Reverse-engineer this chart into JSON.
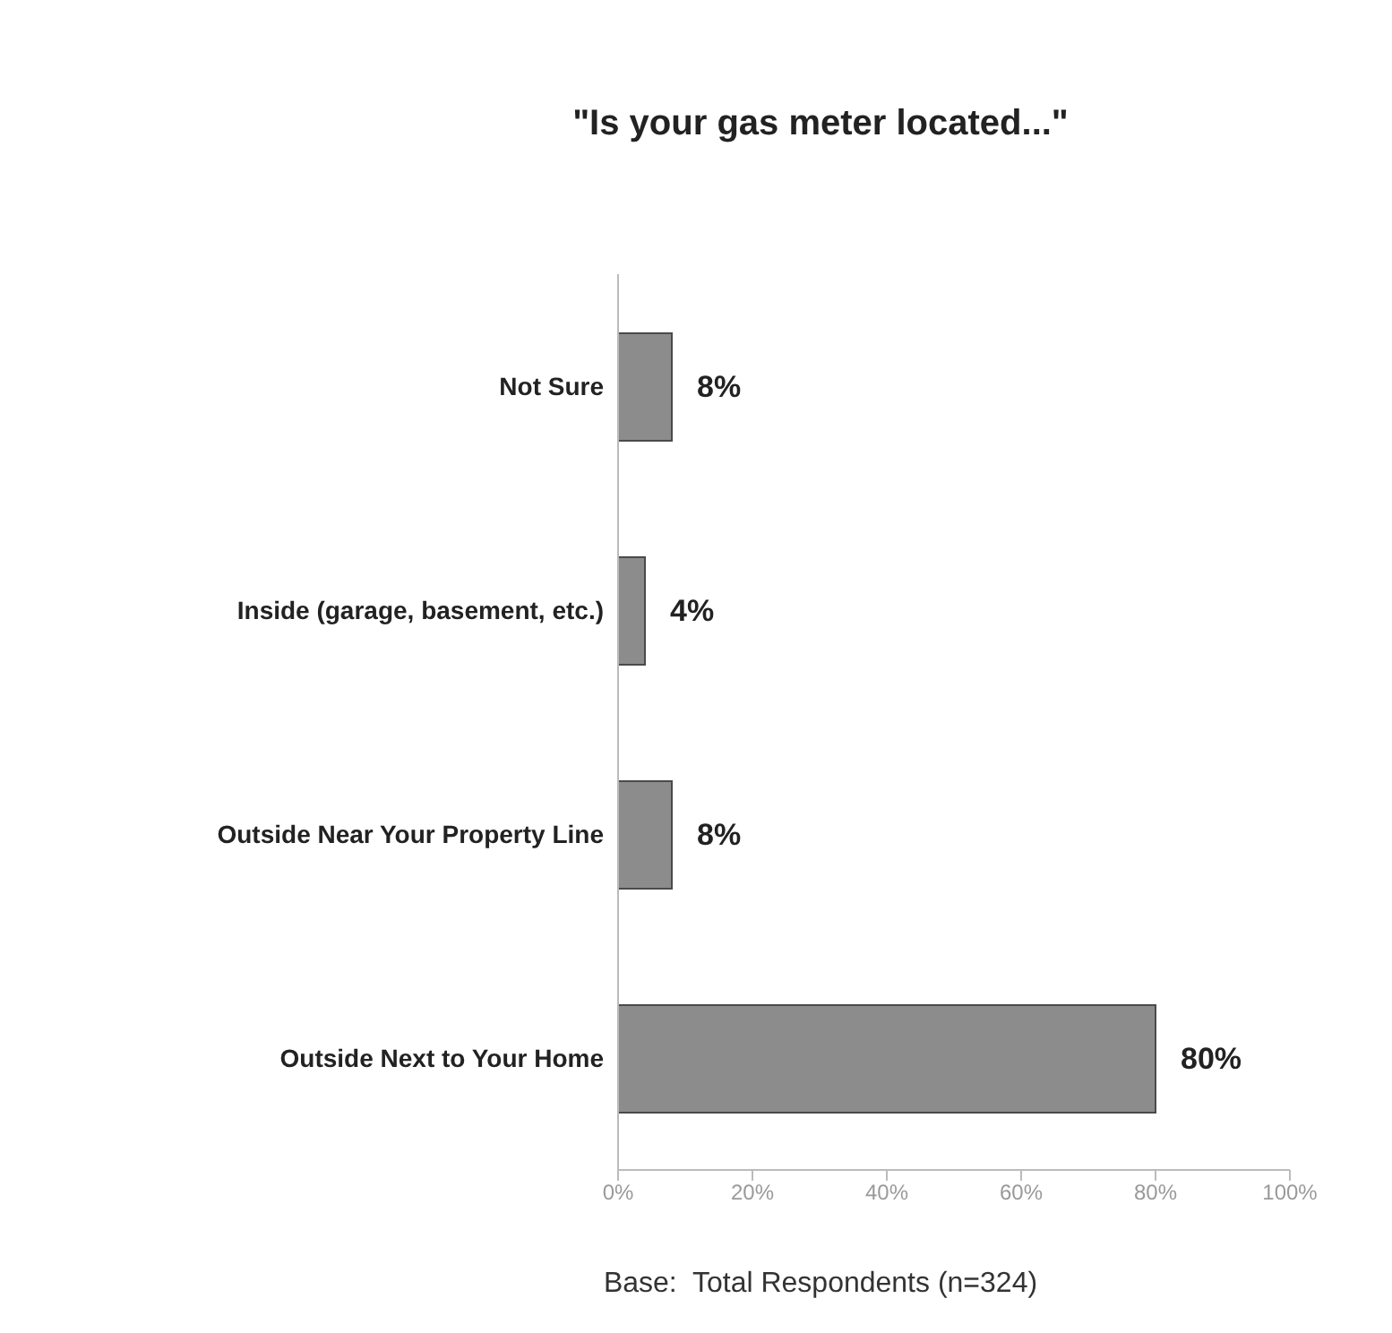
{
  "chart_data": {
    "type": "bar",
    "orientation": "horizontal",
    "title": "\"Is your gas meter located...\"",
    "categories": [
      "Not Sure",
      "Inside (garage, basement, etc.)",
      "Outside Near Your Property Line",
      "Outside Next to Your Home"
    ],
    "values": [
      8,
      4,
      8,
      80
    ],
    "value_labels": [
      "8%",
      "4%",
      "8%",
      "80%"
    ],
    "color": "#8c8c8c",
    "xlim": [
      0,
      100
    ],
    "xticks": [
      {
        "value": 0,
        "label": "0%"
      },
      {
        "value": 20,
        "label": "20%"
      },
      {
        "value": 40,
        "label": "40%"
      },
      {
        "value": 60,
        "label": "60%"
      },
      {
        "value": 80,
        "label": "80%"
      },
      {
        "value": 100,
        "label": "100%"
      }
    ],
    "grid": false,
    "legend": false,
    "annotations": [
      "Base:  Total Respondents (n=324)"
    ]
  }
}
